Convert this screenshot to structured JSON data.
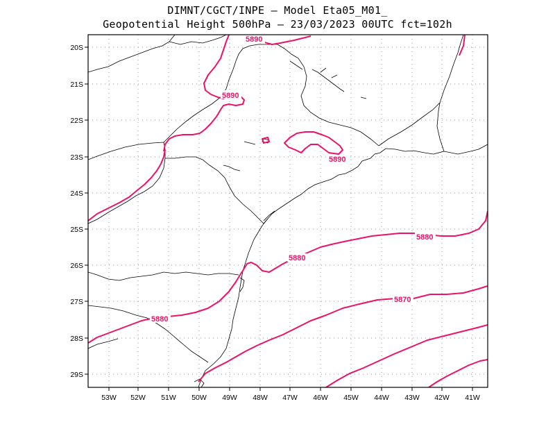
{
  "title": {
    "line1": "DIMNT/CGCT/INPE –  Model Eta05_M01_",
    "line2": "Geopotential Height 500hPa –  23/03/2023 00UTC fct=102h"
  },
  "axes": {
    "lat_labels": [
      "20S",
      "21S",
      "22S",
      "23S",
      "24S",
      "25S",
      "26S",
      "27S",
      "28S",
      "29S"
    ],
    "lon_labels": [
      "53W",
      "52W",
      "51W",
      "50W",
      "49W",
      "48W",
      "47W",
      "46W",
      "45W",
      "44W",
      "43W",
      "42W",
      "41W"
    ]
  },
  "contours": {
    "color": "#ee1166",
    "labels": [
      "5890",
      "5890",
      "5890",
      "5880",
      "5880",
      "5880",
      "5870"
    ]
  },
  "style": {
    "coast_color": "#000000",
    "grid_color": "#999999"
  }
}
